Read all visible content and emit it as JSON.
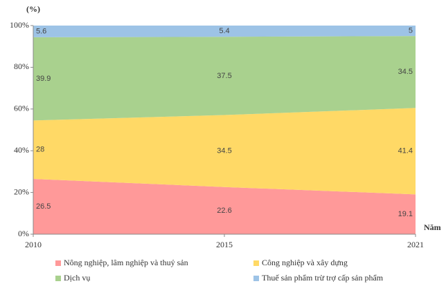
{
  "chart_data": {
    "type": "stacked_area",
    "y_label": "(%)",
    "x_label": "Năm",
    "categories": [
      "2010",
      "2015",
      "2021"
    ],
    "series": [
      {
        "name": "Nông nghiệp, lâm nghiệp và thuỷ sản",
        "color": "#ff9999",
        "values": [
          26.5,
          22.6,
          19.1
        ]
      },
      {
        "name": "Công nghiệp và xây dựng",
        "color": "#ffd966",
        "values": [
          28,
          34.5,
          41.4
        ]
      },
      {
        "name": "Dịch vụ",
        "color": "#a9d18e",
        "values": [
          39.9,
          37.5,
          34.5
        ]
      },
      {
        "name": "Thuế sản phẩm trừ trợ cấp sản phẩm",
        "color": "#9dc3e6",
        "values": [
          5.6,
          5.4,
          5
        ]
      }
    ],
    "ylim": [
      0,
      100
    ],
    "yticks": [
      {
        "value": 0,
        "label": "0%"
      },
      {
        "value": 20,
        "label": "20%"
      },
      {
        "value": 40,
        "label": "40%"
      },
      {
        "value": 60,
        "label": "60%"
      },
      {
        "value": 80,
        "label": "80%"
      },
      {
        "value": 100,
        "label": "100%"
      }
    ]
  }
}
